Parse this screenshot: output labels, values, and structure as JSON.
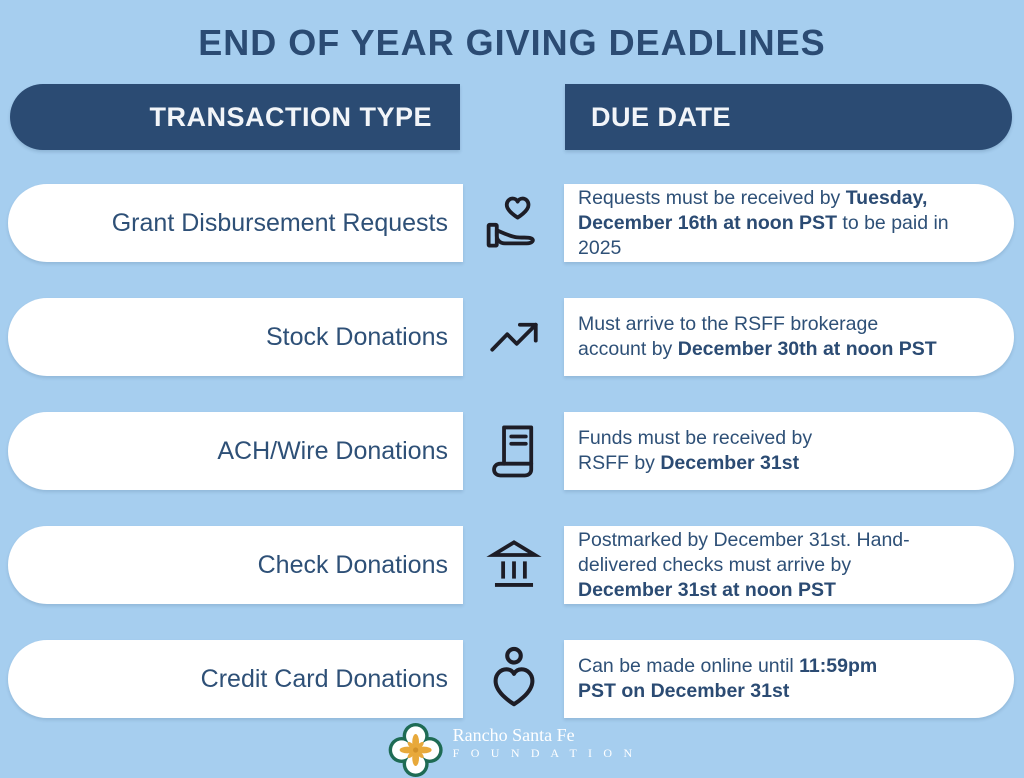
{
  "title": "END OF YEAR GIVING DEADLINES",
  "colors": {
    "background": "#A6CEEF",
    "navy": "#2B4B73",
    "text_navy": "#2E5077",
    "pill_white": "#FFFFFF",
    "icon_dark": "#1D1D26",
    "logo_green": "#1E6B54",
    "logo_gold": "#E8A93B"
  },
  "table": {
    "headers": {
      "transaction_type": "TRANSACTION TYPE",
      "due_date": "DUE DATE"
    },
    "rows": [
      {
        "type": "Grant Disbursement Requests",
        "icon": "hand-heart-icon",
        "due": [
          {
            "t": "Requests must be received by ",
            "b": false
          },
          {
            "t": "Tuesday,\nDecember 16th at noon PST",
            "b": true
          },
          {
            "t": " to be paid in\n2025",
            "b": false
          }
        ]
      },
      {
        "type": "Stock Donations",
        "icon": "trending-up-icon",
        "due": [
          {
            "t": "Must arrive to the RSFF brokerage\naccount by ",
            "b": false
          },
          {
            "t": "December 30th at noon PST",
            "b": true
          }
        ]
      },
      {
        "type": "ACH/Wire Donations",
        "icon": "receipt-icon",
        "due": [
          {
            "t": "Funds must be received by\nRSFF by ",
            "b": false
          },
          {
            "t": "December 31st",
            "b": true
          }
        ]
      },
      {
        "type": "Check Donations",
        "icon": "bank-icon",
        "due": [
          {
            "t": "Postmarked by December 31st. Hand-\ndelivered checks must arrive by\n",
            "b": false
          },
          {
            "t": "December 31st at noon PST",
            "b": true
          }
        ]
      },
      {
        "type": "Credit Card Donations",
        "icon": "person-heart-icon",
        "due": [
          {
            "t": "Can be made online until ",
            "b": false
          },
          {
            "t": "11:59pm\nPST on December 31st",
            "b": true
          }
        ]
      }
    ]
  },
  "footer": {
    "org_name": "Rancho Santa Fe",
    "org_subtitle": "F O U N D A T I O N"
  }
}
